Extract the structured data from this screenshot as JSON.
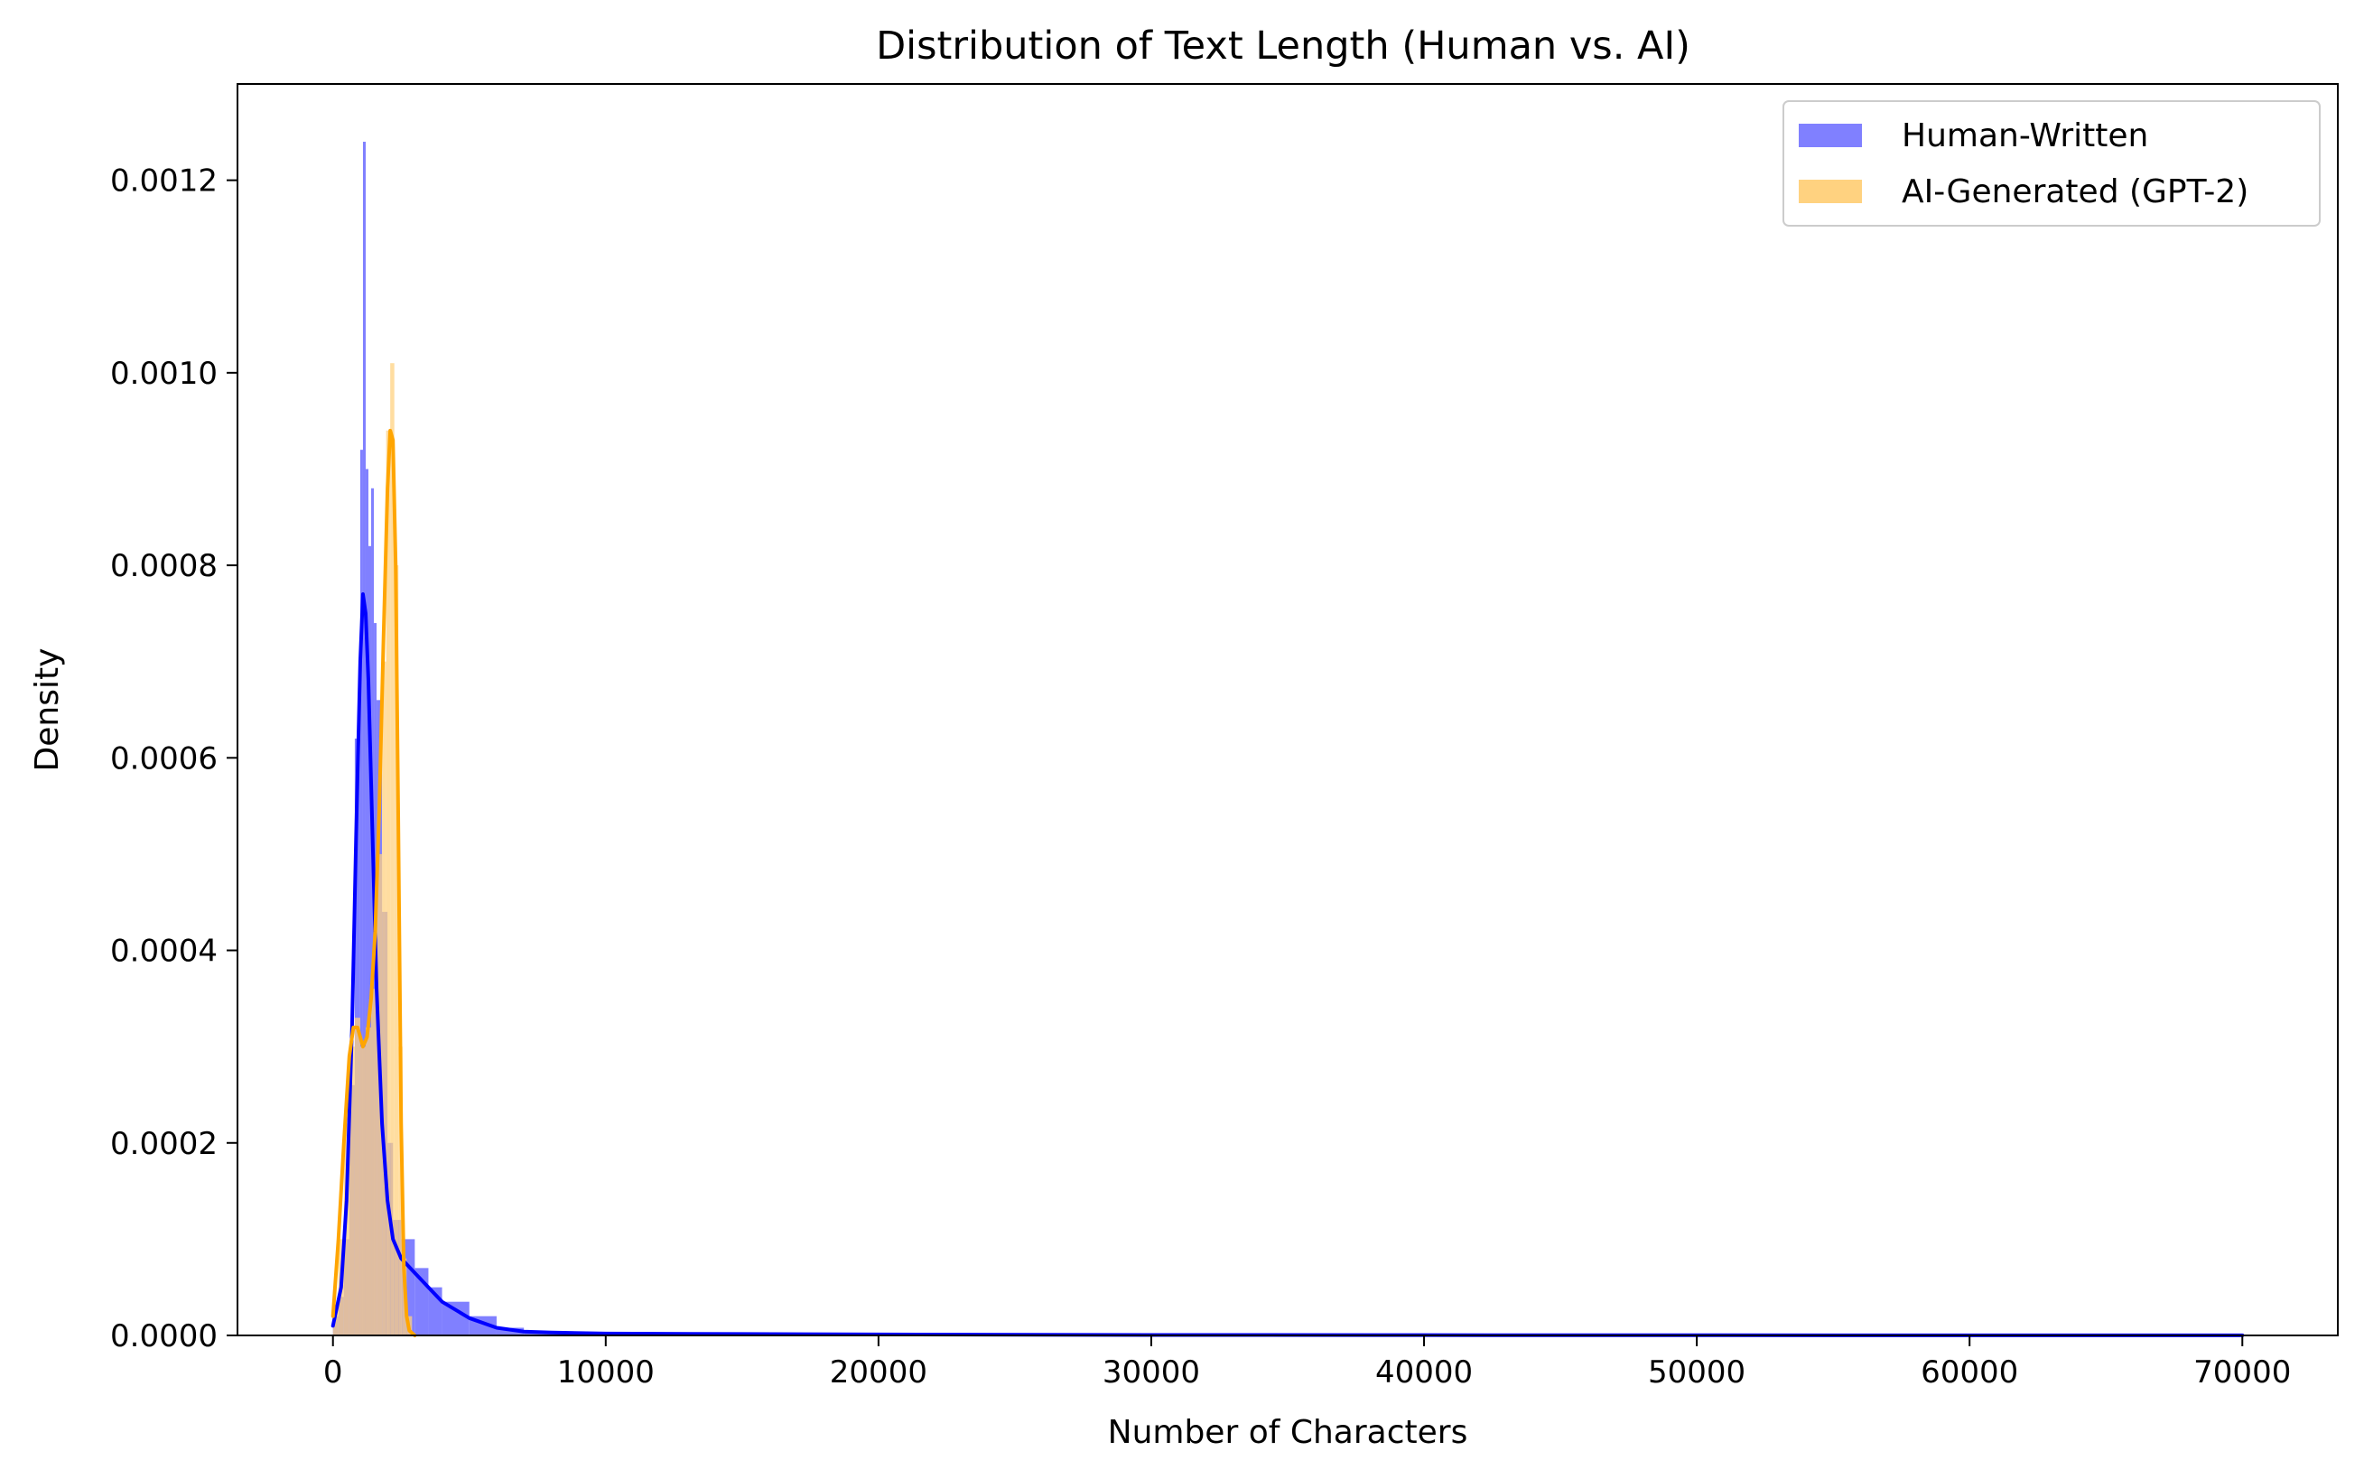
{
  "chart_data": {
    "type": "histogram+kde",
    "title": "Distribution of Text Length (Human vs. AI)",
    "xlabel": "Number of Characters",
    "ylabel": "Density",
    "xlim": [
      -3500,
      73500
    ],
    "ylim": [
      0,
      0.0013
    ],
    "x_ticks": [
      0,
      10000,
      20000,
      30000,
      40000,
      50000,
      60000,
      70000
    ],
    "x_tick_labels": [
      "0",
      "10000",
      "20000",
      "30000",
      "40000",
      "50000",
      "60000",
      "70000"
    ],
    "y_ticks": [
      0,
      0.0002,
      0.0004,
      0.0006,
      0.0008,
      0.001,
      0.0012
    ],
    "y_tick_labels": [
      "0.0000",
      "0.0002",
      "0.0004",
      "0.0006",
      "0.0008",
      "0.0010",
      "0.0012"
    ],
    "grid": false,
    "legend_position": "top-right",
    "series": [
      {
        "name": "Human-Written",
        "hist_color": "#8080ff",
        "kde_color": "#0000ff",
        "hist_bins": [
          {
            "x0": 0,
            "x1": 200,
            "y": 2e-05
          },
          {
            "x0": 200,
            "x1": 400,
            "y": 4e-05
          },
          {
            "x0": 400,
            "x1": 600,
            "y": 0.0001
          },
          {
            "x0": 600,
            "x1": 800,
            "y": 0.00026
          },
          {
            "x0": 800,
            "x1": 1000,
            "y": 0.00062
          },
          {
            "x0": 1000,
            "x1": 1100,
            "y": 0.00092
          },
          {
            "x0": 1100,
            "x1": 1200,
            "y": 0.00124
          },
          {
            "x0": 1200,
            "x1": 1300,
            "y": 0.0009
          },
          {
            "x0": 1300,
            "x1": 1400,
            "y": 0.00082
          },
          {
            "x0": 1400,
            "x1": 1500,
            "y": 0.00088
          },
          {
            "x0": 1500,
            "x1": 1600,
            "y": 0.00074
          },
          {
            "x0": 1600,
            "x1": 1800,
            "y": 0.00066
          },
          {
            "x0": 1800,
            "x1": 2000,
            "y": 0.00044
          },
          {
            "x0": 2000,
            "x1": 2200,
            "y": 0.0002
          },
          {
            "x0": 2200,
            "x1": 2500,
            "y": 0.00012
          },
          {
            "x0": 2500,
            "x1": 3000,
            "y": 0.0001
          },
          {
            "x0": 3000,
            "x1": 3500,
            "y": 7e-05
          },
          {
            "x0": 3500,
            "x1": 4000,
            "y": 5e-05
          },
          {
            "x0": 4000,
            "x1": 5000,
            "y": 3.5e-05
          },
          {
            "x0": 5000,
            "x1": 6000,
            "y": 2e-05
          },
          {
            "x0": 6000,
            "x1": 7000,
            "y": 8e-06
          },
          {
            "x0": 7000,
            "x1": 9000,
            "y": 4e-06
          },
          {
            "x0": 9000,
            "x1": 12000,
            "y": 2e-06
          },
          {
            "x0": 12000,
            "x1": 20000,
            "y": 1e-06
          },
          {
            "x0": 20000,
            "x1": 70000,
            "y": 3e-07
          }
        ],
        "kde": {
          "x": [
            0,
            300,
            500,
            700,
            850,
            1000,
            1100,
            1200,
            1300,
            1450,
            1600,
            1800,
            2000,
            2200,
            2500,
            3000,
            3500,
            4000,
            5000,
            6000,
            7000,
            8000,
            10000,
            15000,
            20000,
            30000,
            40000,
            50000,
            60000,
            70000
          ],
          "y": [
            1e-05,
            5e-05,
            0.00014,
            0.00032,
            0.00052,
            0.0007,
            0.00077,
            0.00075,
            0.00068,
            0.00052,
            0.00036,
            0.00022,
            0.00014,
            0.0001,
            8e-05,
            6.5e-05,
            5e-05,
            3.5e-05,
            1.8e-05,
            8e-06,
            4e-06,
            3e-06,
            2e-06,
            1.5e-06,
            1e-06,
            5e-07,
            3e-07,
            2e-07,
            1e-07,
            1e-07
          ]
        }
      },
      {
        "name": "AI-Generated (GPT-2)",
        "hist_color": "#ffd280",
        "kde_color": "#ffa500",
        "hist_bins": [
          {
            "x0": 0,
            "x1": 200,
            "y": 3e-05
          },
          {
            "x0": 200,
            "x1": 400,
            "y": 0.0001
          },
          {
            "x0": 400,
            "x1": 600,
            "y": 0.00022
          },
          {
            "x0": 600,
            "x1": 800,
            "y": 0.0003
          },
          {
            "x0": 800,
            "x1": 1000,
            "y": 0.00033
          },
          {
            "x0": 1000,
            "x1": 1200,
            "y": 0.0003
          },
          {
            "x0": 1200,
            "x1": 1400,
            "y": 0.00032
          },
          {
            "x0": 1400,
            "x1": 1600,
            "y": 0.00036
          },
          {
            "x0": 1600,
            "x1": 1800,
            "y": 0.0005
          },
          {
            "x0": 1800,
            "x1": 1950,
            "y": 0.0007
          },
          {
            "x0": 1950,
            "x1": 2100,
            "y": 0.00094
          },
          {
            "x0": 2100,
            "x1": 2250,
            "y": 0.00101
          },
          {
            "x0": 2250,
            "x1": 2400,
            "y": 0.0008
          },
          {
            "x0": 2400,
            "x1": 2550,
            "y": 0.0003
          },
          {
            "x0": 2550,
            "x1": 2700,
            "y": 8e-05
          },
          {
            "x0": 2700,
            "x1": 2900,
            "y": 2e-05
          }
        ],
        "kde": {
          "x": [
            0,
            200,
            400,
            600,
            750,
            900,
            1100,
            1250,
            1400,
            1550,
            1700,
            1850,
            2000,
            2100,
            2200,
            2300,
            2400,
            2500,
            2600,
            2700,
            2800,
            3000
          ],
          "y": [
            2e-05,
            0.0001,
            0.0002,
            0.00029,
            0.00032,
            0.00032,
            0.0003,
            0.00031,
            0.00035,
            0.00042,
            0.00055,
            0.00072,
            0.00088,
            0.00094,
            0.00093,
            0.0008,
            0.00052,
            0.00022,
            7e-05,
            2e-05,
            5e-06,
            0.0
          ]
        }
      }
    ]
  }
}
